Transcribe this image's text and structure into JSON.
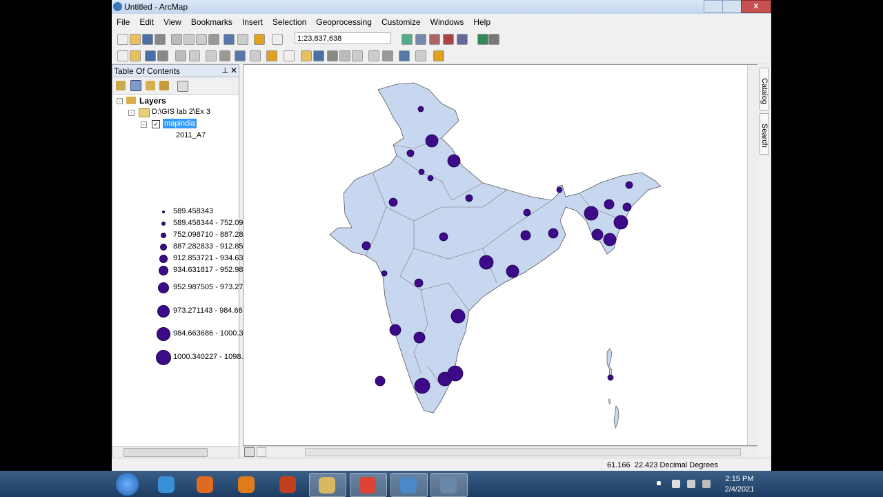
{
  "window": {
    "title": "Untitled - ArcMap"
  },
  "menu": [
    "File",
    "Edit",
    "View",
    "Bookmarks",
    "Insert",
    "Selection",
    "Geoprocessing",
    "Customize",
    "Windows",
    "Help"
  ],
  "toolbar": {
    "scale": "1:23,837,638"
  },
  "toc": {
    "title": "Table Of Contents",
    "tree": {
      "root": "Layers",
      "folder": "D:\\GIS lab 2\\Ex 3",
      "layer": "mapindia",
      "field": "2011_A7",
      "classes": [
        "589.458343",
        "589.458344 - 752.09",
        "752.098710 - 887.28",
        "887.282833 - 912.85",
        "912.853721 - 934.63",
        "934.631817 - 952.98",
        "952.987505 - 973.27",
        "973.271143 - 984.66",
        "984.663686 - 1000.3",
        "1000.340227 - 1098."
      ]
    }
  },
  "side_tabs": [
    "Catalog",
    "Search"
  ],
  "status": {
    "coords": "61.166  22.423 Decimal Degrees"
  },
  "taskbar": {
    "time": "2:15 PM",
    "date": "2/4/2021"
  }
}
